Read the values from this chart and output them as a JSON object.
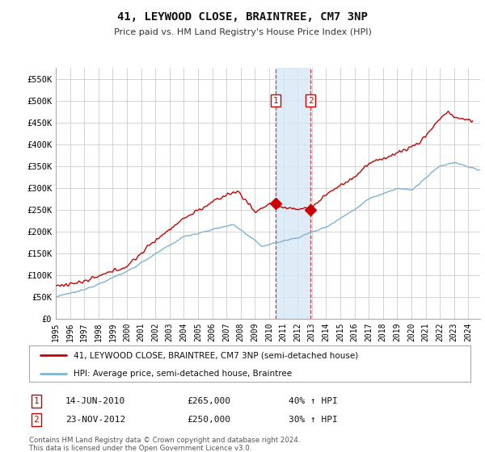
{
  "title": "41, LEYWOOD CLOSE, BRAINTREE, CM7 3NP",
  "subtitle": "Price paid vs. HM Land Registry's House Price Index (HPI)",
  "yticks": [
    0,
    50000,
    100000,
    150000,
    200000,
    250000,
    300000,
    350000,
    400000,
    450000,
    500000,
    550000
  ],
  "ytick_labels": [
    "£0",
    "£50K",
    "£100K",
    "£150K",
    "£200K",
    "£250K",
    "£300K",
    "£350K",
    "£400K",
    "£450K",
    "£500K",
    "£550K"
  ],
  "xlim_start": 1995.0,
  "xlim_end": 2024.83,
  "ylim": [
    0,
    575000
  ],
  "red_line_color": "#cc0000",
  "blue_line_color": "#7fb3d3",
  "sale1_date": 2010.45,
  "sale1_price": 265000,
  "sale2_date": 2012.9,
  "sale2_price": 250000,
  "legend_label_red": "41, LEYWOOD CLOSE, BRAINTREE, CM7 3NP (semi-detached house)",
  "legend_label_blue": "HPI: Average price, semi-detached house, Braintree",
  "table_row1": [
    "1",
    "14-JUN-2010",
    "£265,000",
    "40% ↑ HPI"
  ],
  "table_row2": [
    "2",
    "23-NOV-2012",
    "£250,000",
    "30% ↑ HPI"
  ],
  "footnote": "Contains HM Land Registry data © Crown copyright and database right 2024.\nThis data is licensed under the Open Government Licence v3.0.",
  "background_color": "#ffffff",
  "grid_color": "#cccccc",
  "shade_color": "#d6e8f5"
}
